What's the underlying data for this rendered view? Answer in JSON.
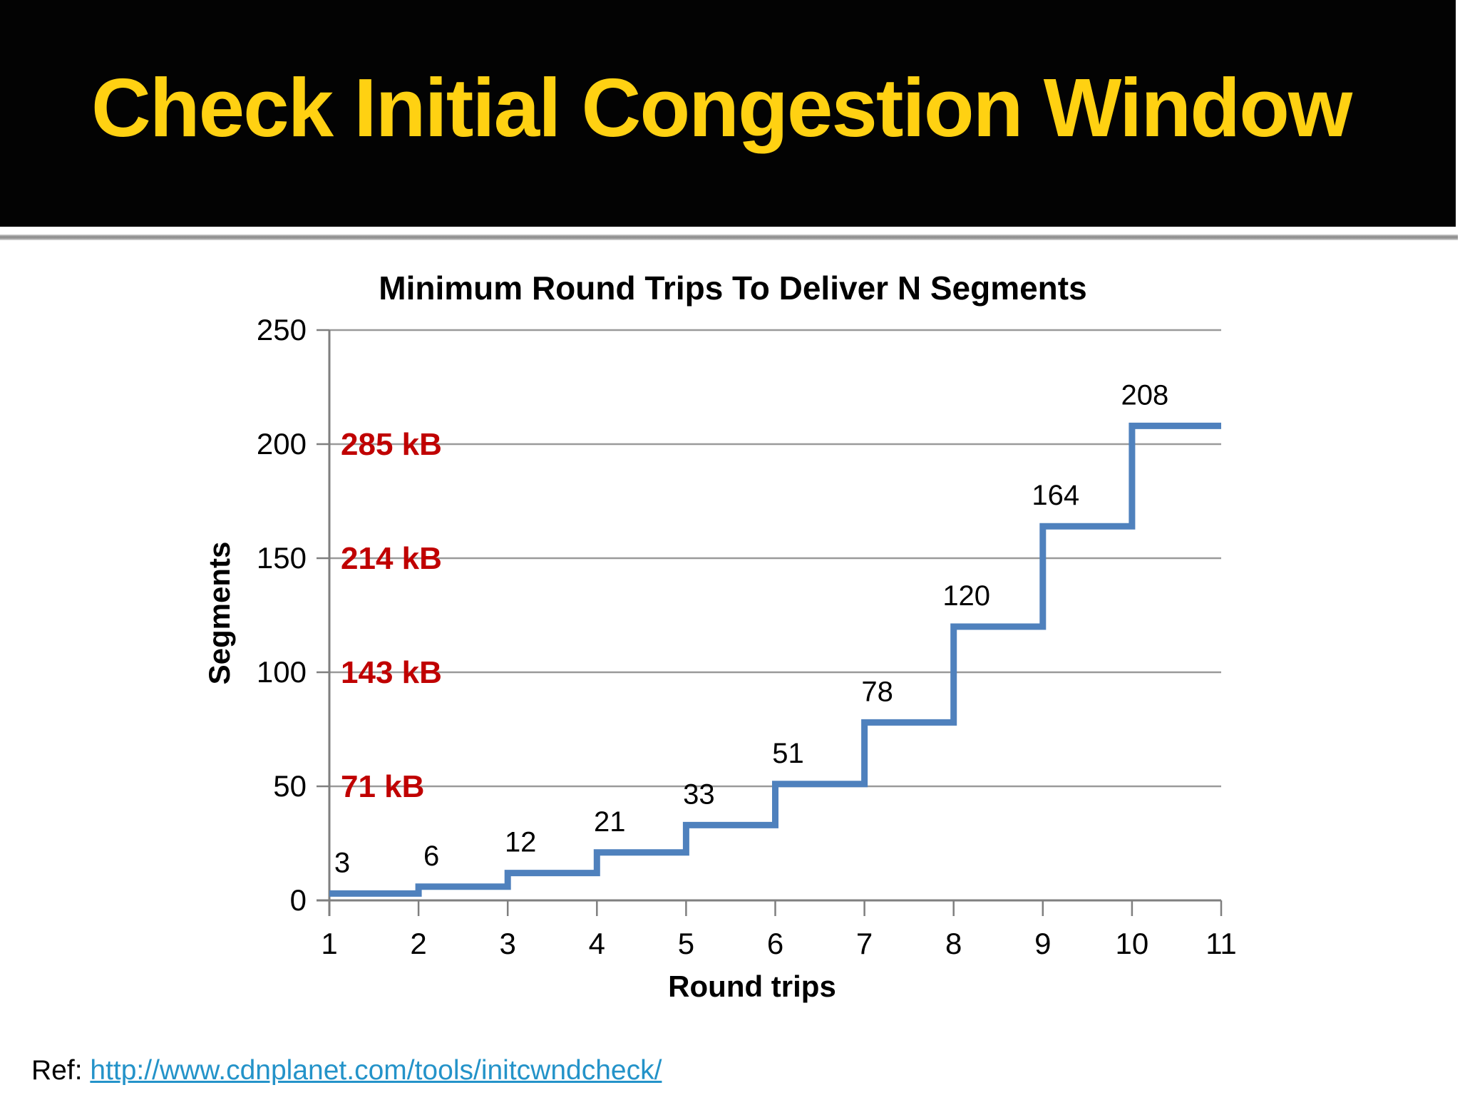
{
  "slide": {
    "header": {
      "title": "Check Initial Congestion Window"
    },
    "footer": {
      "ref_label": "Ref:",
      "link_text": "http://www.cdnplanet.com/tools/initcwndcheck/"
    },
    "colors": {
      "header_bg": "#030303",
      "header_title": "#FFD112",
      "link": "#2493C9"
    }
  },
  "chart_data": {
    "type": "line",
    "subtype": "step",
    "title": "Minimum Round Trips To Deliver N Segments",
    "xlabel": "Round trips",
    "ylabel": "Segments",
    "xlim": [
      1,
      11
    ],
    "ylim": [
      0,
      250
    ],
    "x_ticks": [
      1,
      2,
      3,
      4,
      5,
      6,
      7,
      8,
      9,
      10,
      11
    ],
    "y_ticks": [
      0,
      50,
      100,
      150,
      200,
      250
    ],
    "grid": true,
    "legend": "none",
    "series": [
      {
        "name": "Segments",
        "step_start_x": [
          1,
          2,
          3,
          4,
          5,
          6,
          7,
          8,
          9,
          10
        ],
        "values": [
          3,
          6,
          12,
          21,
          33,
          51,
          78,
          120,
          164,
          208
        ],
        "last_step_end_x": 11,
        "data_labels": [
          "3",
          "6",
          "12",
          "21",
          "33",
          "51",
          "78",
          "120",
          "164",
          "208"
        ]
      }
    ],
    "annotations": [
      {
        "text": "285 kB",
        "at_y": 200
      },
      {
        "text": "214 kB",
        "at_y": 150
      },
      {
        "text": "143 kB",
        "at_y": 100
      },
      {
        "text": "71 kB",
        "at_y": 50
      }
    ],
    "colors": {
      "line": "#4F81BD",
      "gridline": "#9A9A9A",
      "axis": "#7F7F7F",
      "annotation": "#C00000",
      "text": "#000000"
    }
  }
}
